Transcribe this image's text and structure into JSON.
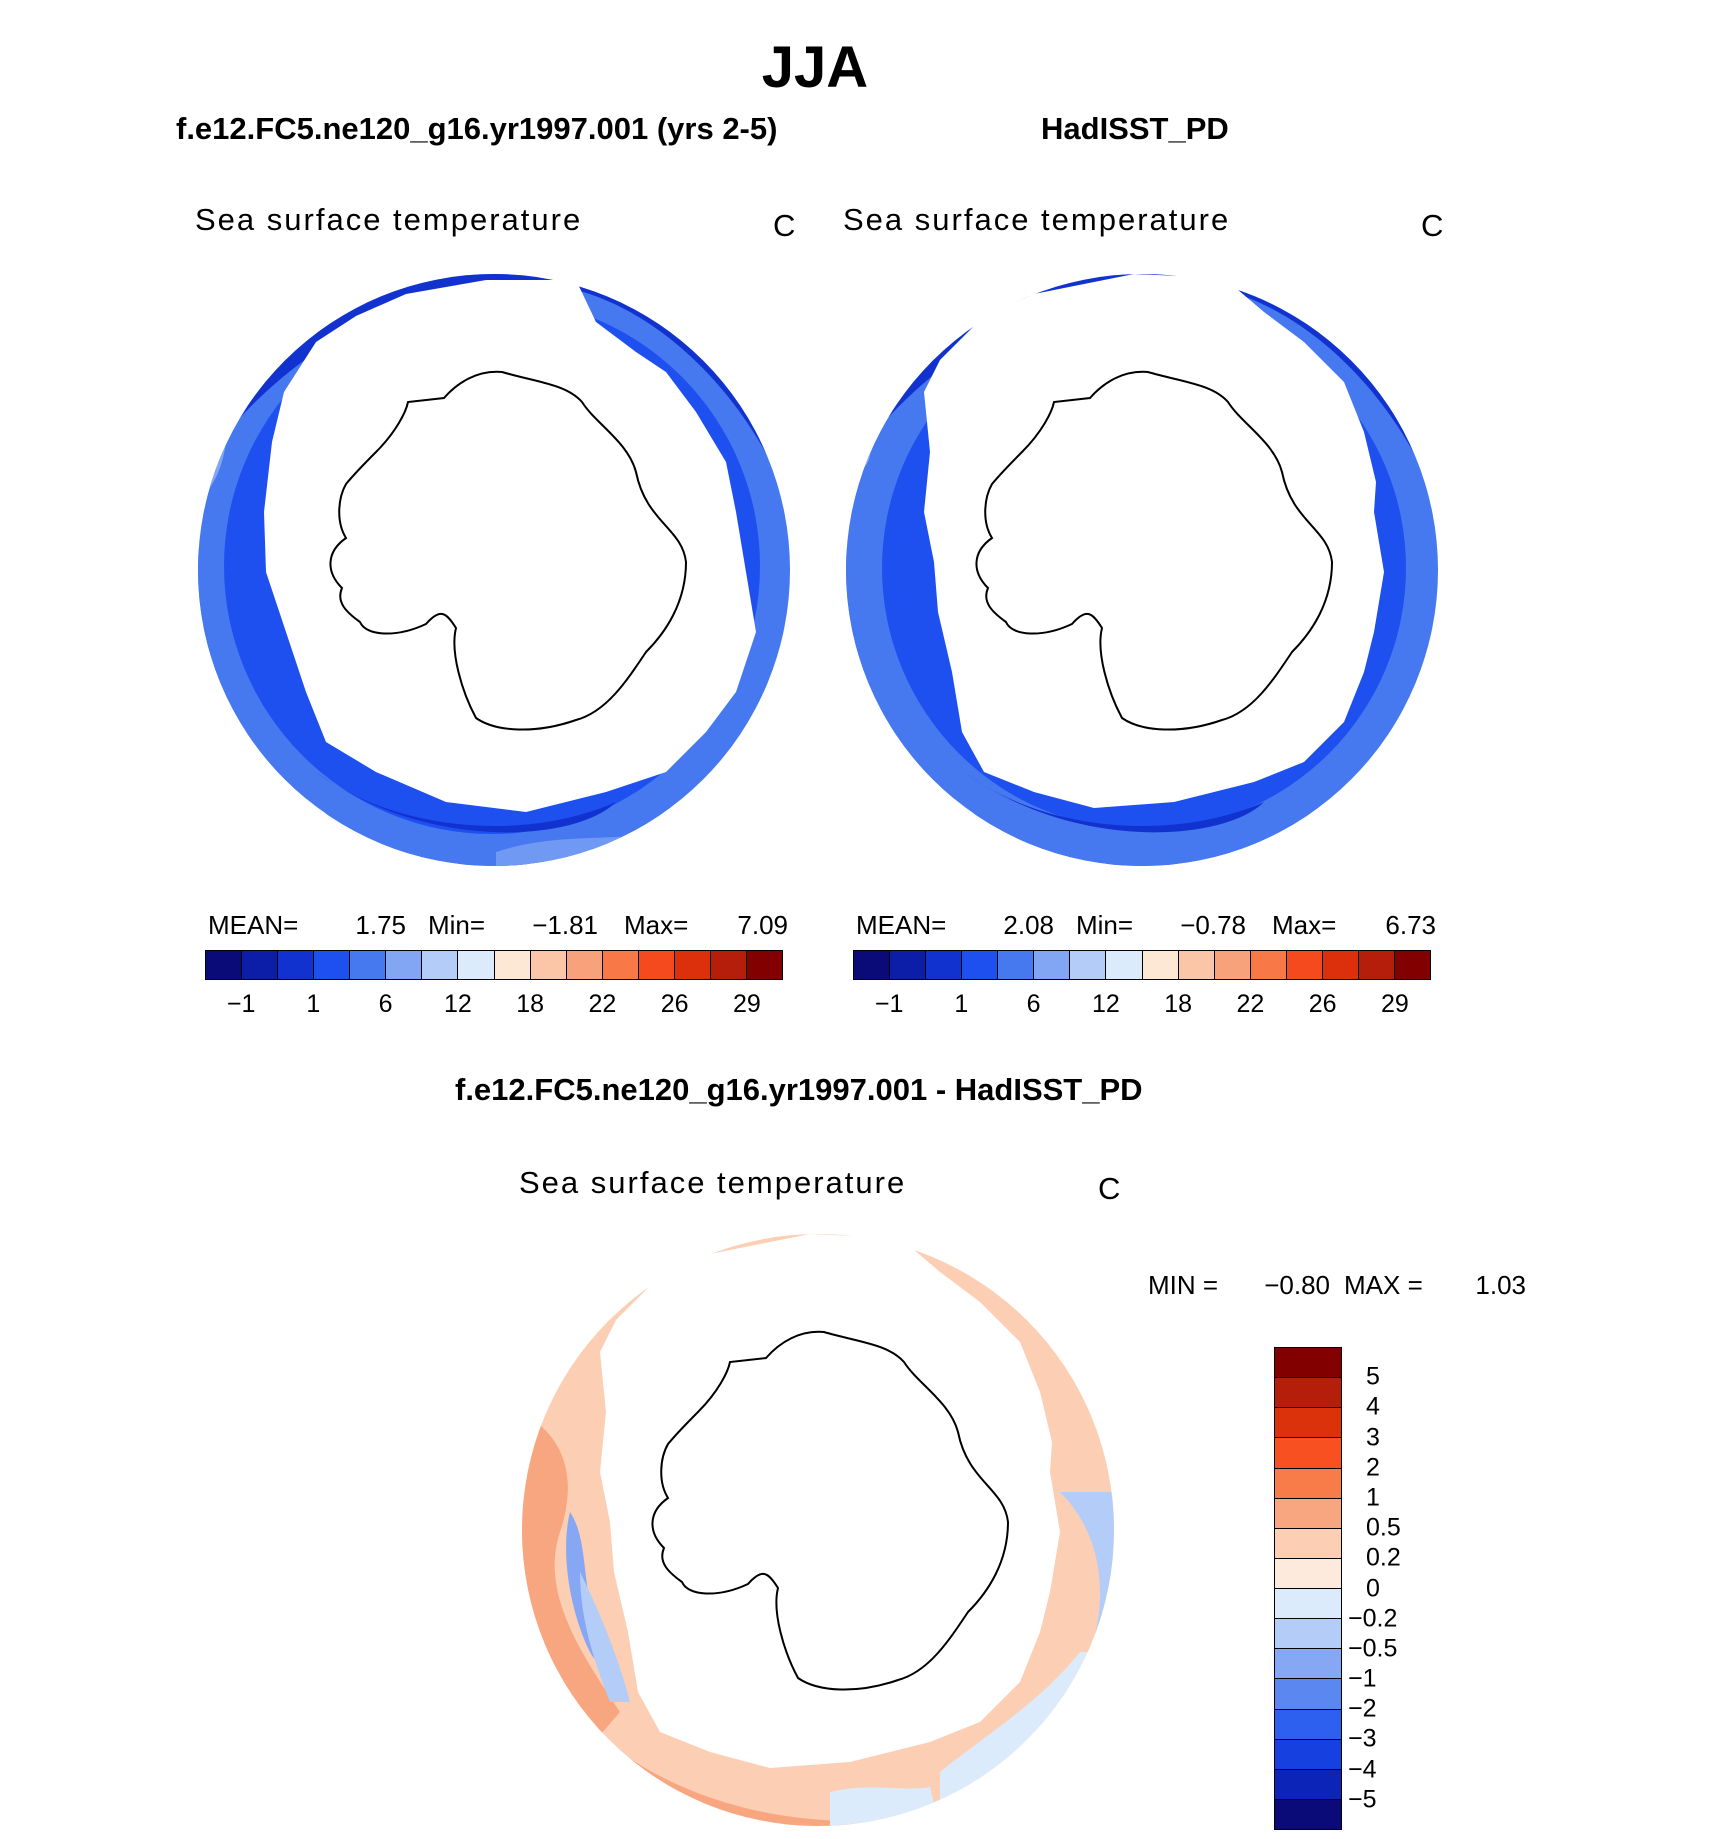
{
  "figure": {
    "title": "JJA"
  },
  "panel1": {
    "case": "f.e12.FC5.ne120_g16.yr1997.001 (yrs 2-5)",
    "long_name": "Sea surface temperature",
    "units": "C",
    "mean_label": "MEAN=",
    "mean": "1.75",
    "min_label": "Min=",
    "min": "−1.81",
    "max_label": "Max=",
    "max": "7.09"
  },
  "panel2": {
    "case": "HadISST_PD",
    "long_name": "Sea surface temperature",
    "units": "C",
    "mean_label": "MEAN=",
    "mean": "2.08",
    "min_label": "Min=",
    "min": "−0.78",
    "max_label": "Max=",
    "max": "6.73"
  },
  "panel3": {
    "case": "f.e12.FC5.ne120_g16.yr1997.001 - HadISST_PD",
    "long_name": "Sea surface temperature",
    "units": "C",
    "min_label": "MIN =",
    "min": "−0.80",
    "max_label": "MAX =",
    "max": "1.03"
  },
  "sst_colorbar": {
    "colors": [
      "#0a0a78",
      "#0c1ea8",
      "#1232d0",
      "#1e50f0",
      "#4678f0",
      "#82a6f4",
      "#b4cdf8",
      "#dcebfc",
      "#fde8d6",
      "#fbc6a8",
      "#f8a27c",
      "#f87848",
      "#f44a1e",
      "#dc2f0c",
      "#b41e0a",
      "#820000"
    ],
    "tick_labels": [
      "−1",
      "1",
      "6",
      "12",
      "18",
      "22",
      "26",
      "29"
    ]
  },
  "diff_colorbar": {
    "colors": [
      "#820000",
      "#b41e0a",
      "#dc320c",
      "#f85020",
      "#f87c4a",
      "#f8a680",
      "#fcceb4",
      "#fdeadc",
      "#dcebfc",
      "#b4cdf8",
      "#86a8f4",
      "#5a88f0",
      "#2e60f0",
      "#1640e0",
      "#0c24b8",
      "#0a0a78"
    ],
    "tick_labels": [
      "5",
      "4",
      "3",
      "2",
      "1",
      "0.5",
      "0.2",
      "0",
      "−0.2",
      "−0.5",
      "−1",
      "−2",
      "−3",
      "−4",
      "−5"
    ]
  }
}
